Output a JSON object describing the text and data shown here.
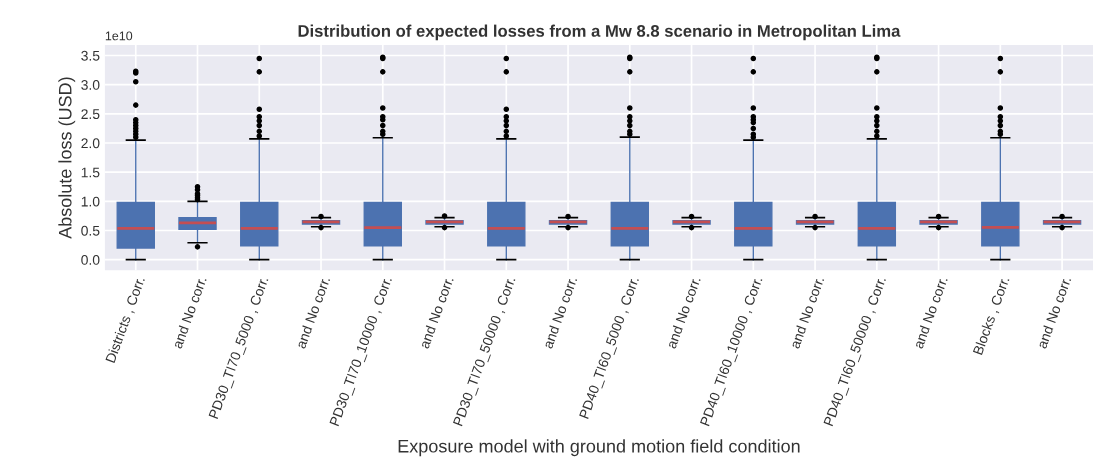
{
  "chart_data": {
    "type": "box",
    "title": "Distribution of expected losses from a Mw 8.8 scenario in Metropolitan Lima",
    "xlabel": "Exposure model with ground motion field condition",
    "ylabel": "Absolute loss (USD)",
    "annotations": [
      "1e10"
    ],
    "categories": [
      "Districts , Corr.",
      "and No corr.",
      "PD30_TI70_5000 , Corr.",
      "and No corr.",
      "PD30_TI70_10000 , Corr.",
      "and No corr.",
      "PD30_TI70_50000 , Corr.",
      "and No corr.",
      "PD40_TI60_5000 , Corr.",
      "and No corr.",
      "PD40_TI60_10000 , Corr.",
      "and No corr.",
      "PD40_TI60_50000 , Corr.",
      "and No corr.",
      "Blocks , Corr.",
      "and No corr."
    ],
    "series": [
      {
        "color": "#4c72b0",
        "boxes": [
          {
            "low": 0.0,
            "q1": 0.2,
            "median": 0.535,
            "q3": 0.98,
            "high": 2.05,
            "outliers": [
              2.1,
              2.15,
              2.2,
              2.25,
              2.3,
              2.35,
              2.4,
              2.65,
              3.05,
              3.2,
              3.23
            ]
          },
          {
            "low": 0.29,
            "q1": 0.52,
            "median": 0.63,
            "q3": 0.72,
            "high": 1.0,
            "outliers": [
              0.22,
              1.03,
              1.06,
              1.1,
              1.13,
              1.2,
              1.25
            ]
          },
          {
            "low": 0.0,
            "q1": 0.24,
            "median": 0.535,
            "q3": 0.98,
            "high": 2.07,
            "outliers": [
              2.12,
              2.2,
              2.3,
              2.38,
              2.45,
              2.58,
              3.22,
              3.45
            ]
          },
          {
            "low": 0.565,
            "q1": 0.61,
            "median": 0.65,
            "q3": 0.67,
            "high": 0.72,
            "outliers": [
              0.55,
              0.74
            ]
          },
          {
            "low": 0.0,
            "q1": 0.24,
            "median": 0.55,
            "q3": 0.98,
            "high": 2.09,
            "outliers": [
              2.15,
              2.2,
              2.3,
              2.4,
              2.45,
              2.6,
              3.22,
              3.45,
              3.47
            ]
          },
          {
            "low": 0.565,
            "q1": 0.61,
            "median": 0.65,
            "q3": 0.67,
            "high": 0.72,
            "outliers": [
              0.55,
              0.75
            ]
          },
          {
            "low": 0.0,
            "q1": 0.24,
            "median": 0.535,
            "q3": 0.98,
            "high": 2.07,
            "outliers": [
              2.12,
              2.2,
              2.3,
              2.38,
              2.45,
              2.58,
              3.22,
              3.45
            ]
          },
          {
            "low": 0.565,
            "q1": 0.61,
            "median": 0.65,
            "q3": 0.67,
            "high": 0.72,
            "outliers": [
              0.55,
              0.74
            ]
          },
          {
            "low": 0.0,
            "q1": 0.24,
            "median": 0.535,
            "q3": 0.98,
            "high": 2.1,
            "outliers": [
              2.15,
              2.2,
              2.3,
              2.38,
              2.45,
              2.6,
              3.22,
              3.45,
              3.47
            ]
          },
          {
            "low": 0.565,
            "q1": 0.61,
            "median": 0.65,
            "q3": 0.67,
            "high": 0.72,
            "outliers": [
              0.55,
              0.74
            ]
          },
          {
            "low": 0.0,
            "q1": 0.24,
            "median": 0.535,
            "q3": 0.98,
            "high": 2.05,
            "outliers": [
              2.1,
              2.15,
              2.25,
              2.35,
              2.4,
              2.45,
              2.6,
              3.22,
              3.45
            ]
          },
          {
            "low": 0.565,
            "q1": 0.61,
            "median": 0.65,
            "q3": 0.67,
            "high": 0.72,
            "outliers": [
              0.55,
              0.74
            ]
          },
          {
            "low": 0.0,
            "q1": 0.24,
            "median": 0.535,
            "q3": 0.98,
            "high": 2.07,
            "outliers": [
              2.12,
              2.2,
              2.3,
              2.38,
              2.45,
              2.6,
              3.22,
              3.45,
              3.47
            ]
          },
          {
            "low": 0.565,
            "q1": 0.61,
            "median": 0.65,
            "q3": 0.67,
            "high": 0.72,
            "outliers": [
              0.55,
              0.74
            ]
          },
          {
            "low": 0.0,
            "q1": 0.24,
            "median": 0.555,
            "q3": 0.98,
            "high": 2.09,
            "outliers": [
              2.15,
              2.2,
              2.3,
              2.38,
              2.45,
              2.6,
              3.22,
              3.45
            ]
          },
          {
            "low": 0.565,
            "q1": 0.61,
            "median": 0.65,
            "q3": 0.67,
            "high": 0.72,
            "outliers": [
              0.55,
              0.74
            ]
          }
        ]
      }
    ],
    "ylim": [
      -0.18,
      3.68
    ],
    "yticks": [
      {
        "value": 0,
        "label": "0.0"
      },
      {
        "value": 0.5,
        "label": "0.5"
      },
      {
        "value": 1,
        "label": "1.0"
      },
      {
        "value": 1.5,
        "label": "1.5"
      },
      {
        "value": 2,
        "label": "2.0"
      },
      {
        "value": 2.5,
        "label": "2.5"
      },
      {
        "value": 3,
        "label": "3.0"
      },
      {
        "value": 3.5,
        "label": "3.5"
      }
    ],
    "grid": true
  }
}
